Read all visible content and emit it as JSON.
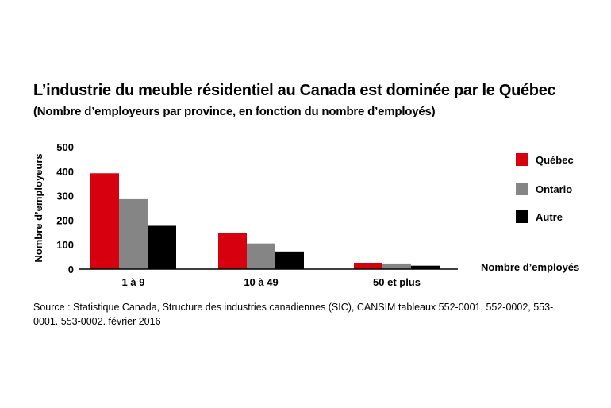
{
  "title": "L’industrie du meuble résidentiel au Canada est dominée par le Québec",
  "subtitle": "(Nombre d’employeurs par province, en fonction du nombre d’employés)",
  "source": "Source : Statistique Canada, Structure des industries canadiennes (SIC), CANSIM tableaux 552-0001, 552-0002, 553-0001. 553-0002. février 2016",
  "chart_data": {
    "type": "bar",
    "title": "L’industrie du meuble résidentiel au Canada est dominée par le Québec",
    "subtitle": "(Nombre d’employeurs par province, en fonction du nombre d’employés)",
    "xlabel": "Nombre d’employés",
    "ylabel": "Nombre d’employeurs",
    "categories": [
      "1 à 9",
      "10 à 49",
      "50 et plus"
    ],
    "series": [
      {
        "name": "Québec",
        "color": "#d7000f",
        "values": [
          392,
          148,
          26
        ]
      },
      {
        "name": "Ontario",
        "color": "#858585",
        "values": [
          286,
          105,
          23
        ]
      },
      {
        "name": "Autre",
        "color": "#000000",
        "values": [
          177,
          72,
          14
        ]
      }
    ],
    "ylim": [
      0,
      500
    ],
    "yticks": [
      0,
      100,
      200,
      300,
      400,
      500
    ],
    "grid": false,
    "legend": "right"
  }
}
